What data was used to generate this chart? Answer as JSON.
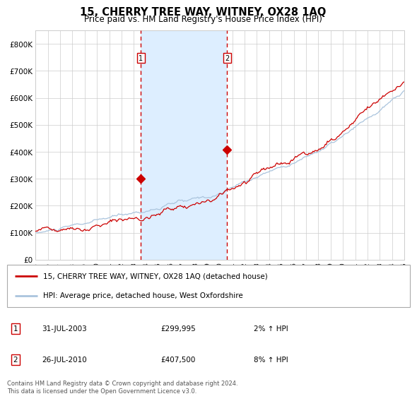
{
  "title": "15, CHERRY TREE WAY, WITNEY, OX28 1AQ",
  "subtitle": "Price paid vs. HM Land Registry's House Price Index (HPI)",
  "hpi_line_color": "#aac4dd",
  "price_line_color": "#cc0000",
  "marker_color": "#cc0000",
  "background_color": "#ffffff",
  "plot_bg_color": "#ffffff",
  "highlight_bg_color": "#ddeeff",
  "ylim": [
    0,
    850000
  ],
  "yticks": [
    0,
    100000,
    200000,
    300000,
    400000,
    500000,
    600000,
    700000,
    800000
  ],
  "ytick_labels": [
    "£0",
    "£100K",
    "£200K",
    "£300K",
    "£400K",
    "£500K",
    "£600K",
    "£700K",
    "£800K"
  ],
  "x_start_year": 1995,
  "x_end_year": 2025,
  "sale1_date": "31-JUL-2003",
  "sale1_price": 299995,
  "sale1_label": "1",
  "sale1_x": 2003.57,
  "sale2_date": "26-JUL-2010",
  "sale2_price": 407500,
  "sale2_label": "2",
  "sale2_x": 2010.57,
  "legend_line1": "15, CHERRY TREE WAY, WITNEY, OX28 1AQ (detached house)",
  "legend_line2": "HPI: Average price, detached house, West Oxfordshire",
  "table_row1": [
    "1",
    "31-JUL-2003",
    "£299,995",
    "2% ↑ HPI"
  ],
  "table_row2": [
    "2",
    "26-JUL-2010",
    "£407,500",
    "8% ↑ HPI"
  ],
  "footer": "Contains HM Land Registry data © Crown copyright and database right 2024.\nThis data is licensed under the Open Government Licence v3.0.",
  "grid_color": "#cccccc",
  "dashed_line_color": "#cc0000"
}
